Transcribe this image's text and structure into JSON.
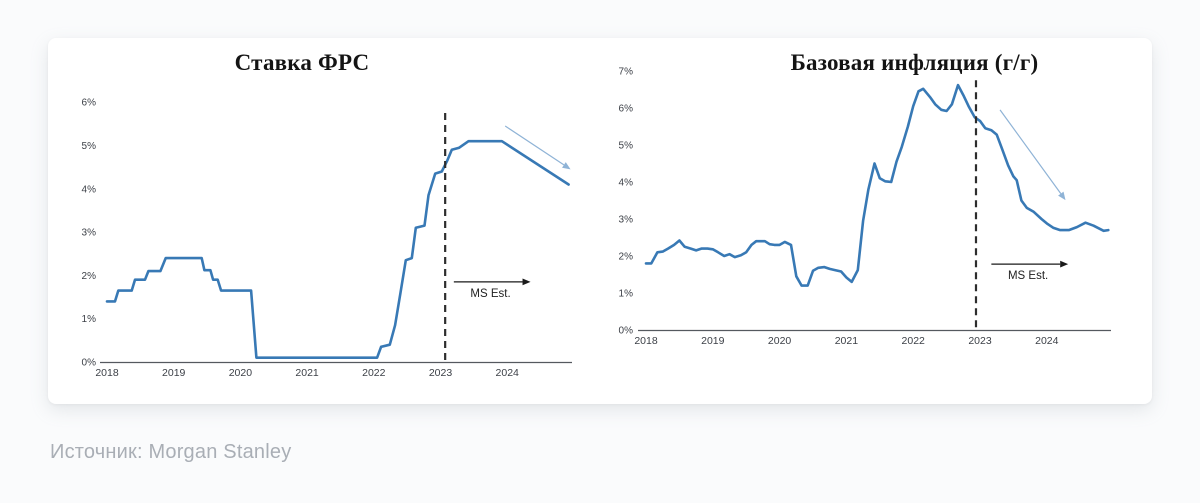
{
  "page": {
    "source": {
      "label": "Источник:",
      "value": "Morgan Stanley"
    }
  },
  "colors": {
    "line": "#3879b5",
    "axis": "#55595f",
    "tick_text": "#3b3f46",
    "title_text": "#141414",
    "divider": "#2d2d2d",
    "trend_arrow": "#8fb3d6",
    "ms_arrow": "#1a1a1a",
    "source_text": "#a9aeb5"
  },
  "chart_data": [
    {
      "type": "line",
      "title": "Ставка ФРС",
      "xlabel": "",
      "ylabel": "",
      "legend": "none",
      "grid": false,
      "x_ticks": [
        2018,
        2019,
        2020,
        2021,
        2022,
        2023,
        2024
      ],
      "y_tick_labels": [
        "0%",
        "1%",
        "2%",
        "3%",
        "4%",
        "5%",
        "6%"
      ],
      "ylim": [
        0,
        6
      ],
      "x_range": [
        2017.9,
        2024.97
      ],
      "series": [
        {
          "name": "Ставка ФРС",
          "points": [
            [
              2018.0,
              1.4
            ],
            [
              2018.12,
              1.4
            ],
            [
              2018.17,
              1.65
            ],
            [
              2018.37,
              1.65
            ],
            [
              2018.42,
              1.9
            ],
            [
              2018.57,
              1.9
            ],
            [
              2018.62,
              2.1
            ],
            [
              2018.8,
              2.1
            ],
            [
              2018.88,
              2.4
            ],
            [
              2019.42,
              2.4
            ],
            [
              2019.46,
              2.12
            ],
            [
              2019.55,
              2.12
            ],
            [
              2019.59,
              1.9
            ],
            [
              2019.66,
              1.9
            ],
            [
              2019.71,
              1.65
            ],
            [
              2020.16,
              1.65
            ],
            [
              2020.24,
              0.1
            ],
            [
              2022.05,
              0.1
            ],
            [
              2022.11,
              0.35
            ],
            [
              2022.24,
              0.4
            ],
            [
              2022.32,
              0.85
            ],
            [
              2022.4,
              1.6
            ],
            [
              2022.48,
              2.35
            ],
            [
              2022.57,
              2.4
            ],
            [
              2022.63,
              3.1
            ],
            [
              2022.76,
              3.15
            ],
            [
              2022.82,
              3.85
            ],
            [
              2022.92,
              4.35
            ],
            [
              2023.02,
              4.4
            ],
            [
              2023.1,
              4.65
            ],
            [
              2023.17,
              4.9
            ],
            [
              2023.28,
              4.95
            ],
            [
              2023.42,
              5.1
            ],
            [
              2023.92,
              5.1
            ],
            [
              2024.92,
              4.1
            ]
          ]
        }
      ],
      "forecast_divider": {
        "x": 2023.07,
        "top_value": 5.75
      },
      "ms_est": {
        "label": "MS Est.",
        "y_value": 1.85,
        "x_from": 2023.2,
        "x_to": 2024.35,
        "label_x": 2023.75
      },
      "trend_arrow": {
        "from": [
          2023.97,
          5.45
        ],
        "to": [
          2024.95,
          4.45
        ]
      }
    },
    {
      "type": "line",
      "title": "Базовая инфляция (г/г)",
      "xlabel": "",
      "ylabel": "",
      "legend": "none",
      "grid": false,
      "x_ticks": [
        2018,
        2019,
        2020,
        2021,
        2022,
        2023,
        2024
      ],
      "y_tick_labels": [
        "0%",
        "1%",
        "2%",
        "3%",
        "4%",
        "5%",
        "6%",
        "7%"
      ],
      "ylim": [
        0,
        7
      ],
      "x_range": [
        2017.88,
        2024.96
      ],
      "series": [
        {
          "name": "Базовая инфляция (г/г)",
          "points": [
            [
              2018.0,
              1.8
            ],
            [
              2018.08,
              1.8
            ],
            [
              2018.17,
              2.1
            ],
            [
              2018.25,
              2.12
            ],
            [
              2018.33,
              2.2
            ],
            [
              2018.42,
              2.3
            ],
            [
              2018.5,
              2.42
            ],
            [
              2018.58,
              2.25
            ],
            [
              2018.67,
              2.2
            ],
            [
              2018.75,
              2.15
            ],
            [
              2018.83,
              2.2
            ],
            [
              2018.92,
              2.2
            ],
            [
              2019.0,
              2.18
            ],
            [
              2019.08,
              2.1
            ],
            [
              2019.17,
              2.0
            ],
            [
              2019.25,
              2.05
            ],
            [
              2019.33,
              1.97
            ],
            [
              2019.42,
              2.02
            ],
            [
              2019.5,
              2.1
            ],
            [
              2019.58,
              2.3
            ],
            [
              2019.65,
              2.4
            ],
            [
              2019.78,
              2.4
            ],
            [
              2019.85,
              2.32
            ],
            [
              2019.92,
              2.3
            ],
            [
              2020.0,
              2.3
            ],
            [
              2020.08,
              2.38
            ],
            [
              2020.17,
              2.3
            ],
            [
              2020.25,
              1.45
            ],
            [
              2020.33,
              1.2
            ],
            [
              2020.42,
              1.2
            ],
            [
              2020.5,
              1.6
            ],
            [
              2020.58,
              1.68
            ],
            [
              2020.67,
              1.7
            ],
            [
              2020.75,
              1.65
            ],
            [
              2020.83,
              1.62
            ],
            [
              2020.92,
              1.58
            ],
            [
              2021.0,
              1.42
            ],
            [
              2021.08,
              1.3
            ],
            [
              2021.17,
              1.62
            ],
            [
              2021.25,
              2.95
            ],
            [
              2021.33,
              3.8
            ],
            [
              2021.42,
              4.5
            ],
            [
              2021.5,
              4.1
            ],
            [
              2021.58,
              4.02
            ],
            [
              2021.67,
              4.0
            ],
            [
              2021.75,
              4.55
            ],
            [
              2021.83,
              4.95
            ],
            [
              2021.92,
              5.5
            ],
            [
              2022.0,
              6.05
            ],
            [
              2022.08,
              6.45
            ],
            [
              2022.15,
              6.52
            ],
            [
              2022.25,
              6.3
            ],
            [
              2022.33,
              6.1
            ],
            [
              2022.42,
              5.95
            ],
            [
              2022.5,
              5.92
            ],
            [
              2022.58,
              6.1
            ],
            [
              2022.67,
              6.62
            ],
            [
              2022.75,
              6.35
            ],
            [
              2022.83,
              6.05
            ],
            [
              2022.92,
              5.75
            ],
            [
              2023.0,
              5.65
            ],
            [
              2023.08,
              5.45
            ],
            [
              2023.17,
              5.4
            ],
            [
              2023.25,
              5.28
            ],
            [
              2023.33,
              4.9
            ],
            [
              2023.42,
              4.45
            ],
            [
              2023.5,
              4.15
            ],
            [
              2023.55,
              4.05
            ],
            [
              2023.62,
              3.5
            ],
            [
              2023.7,
              3.3
            ],
            [
              2023.8,
              3.2
            ],
            [
              2023.92,
              3.0
            ],
            [
              2024.0,
              2.88
            ],
            [
              2024.1,
              2.76
            ],
            [
              2024.2,
              2.7
            ],
            [
              2024.33,
              2.7
            ],
            [
              2024.45,
              2.78
            ],
            [
              2024.58,
              2.9
            ],
            [
              2024.7,
              2.82
            ],
            [
              2024.85,
              2.68
            ],
            [
              2024.92,
              2.7
            ]
          ]
        }
      ],
      "forecast_divider": {
        "x": 2022.94,
        "top_value": 6.75
      },
      "ms_est": {
        "label": "MS Est.",
        "y_value": 1.78,
        "x_from": 2023.17,
        "x_to": 2024.32,
        "label_x": 2023.72
      },
      "trend_arrow": {
        "from": [
          2023.3,
          5.95
        ],
        "to": [
          2024.28,
          3.51
        ]
      }
    }
  ]
}
